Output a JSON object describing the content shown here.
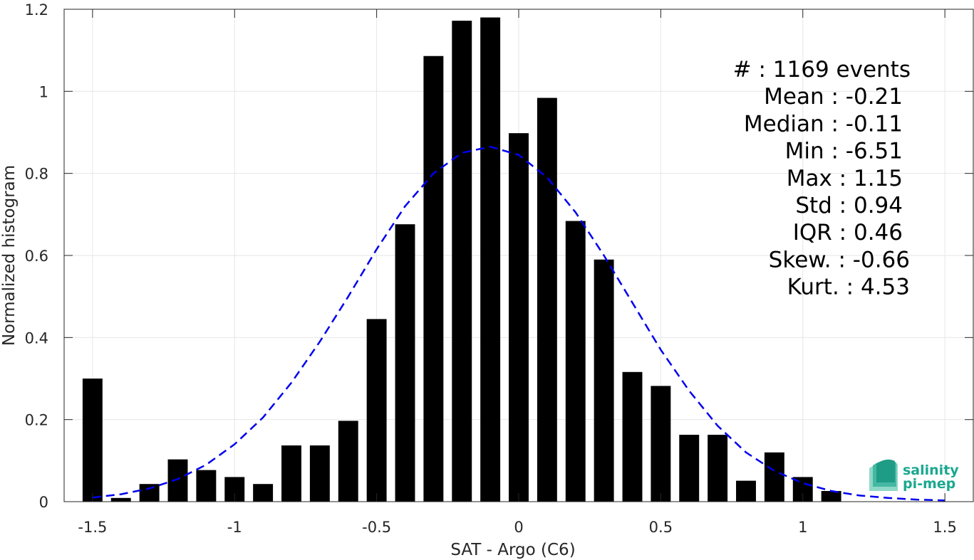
{
  "chart_data": {
    "type": "bar",
    "xlabel": "SAT - Argo (C6)",
    "ylabel": "Normalized histogram",
    "xlim": [
      -1.6,
      1.6
    ],
    "ylim": [
      0,
      1.2
    ],
    "grid": true,
    "x_ticks": [
      "-1.5",
      "-1",
      "-0.5",
      "0",
      "0.5",
      "1",
      "1.5"
    ],
    "y_ticks": [
      "0",
      "0.2",
      "0.4",
      "0.6",
      "0.8",
      "1",
      "1.2"
    ],
    "bin_centers": [
      -1.5,
      -1.4,
      -1.3,
      -1.2,
      -1.1,
      -1.0,
      -0.9,
      -0.8,
      -0.7,
      -0.6,
      -0.5,
      -0.4,
      -0.3,
      -0.2,
      -0.1,
      0.0,
      0.1,
      0.2,
      0.3,
      0.4,
      0.5,
      0.6,
      0.7,
      0.8,
      0.9,
      1.0,
      1.1
    ],
    "values": [
      0.3,
      0.009,
      0.043,
      0.103,
      0.077,
      0.06,
      0.043,
      0.137,
      0.137,
      0.197,
      0.445,
      0.676,
      1.086,
      1.172,
      1.18,
      0.898,
      0.984,
      0.684,
      0.59,
      0.316,
      0.282,
      0.163,
      0.163,
      0.051,
      0.12,
      0.06,
      0.026
    ],
    "bar_color": "#000000",
    "fit_curve": {
      "style": "dashed",
      "color": "#0000ee",
      "x": [
        -1.5,
        -1.4,
        -1.3,
        -1.2,
        -1.1,
        -1.0,
        -0.9,
        -0.8,
        -0.7,
        -0.6,
        -0.5,
        -0.4,
        -0.3,
        -0.2,
        -0.1,
        0.0,
        0.1,
        0.2,
        0.3,
        0.4,
        0.5,
        0.6,
        0.7,
        0.8,
        0.9,
        1.0,
        1.1,
        1.2,
        1.3,
        1.4,
        1.5
      ],
      "y": [
        0.01,
        0.018,
        0.032,
        0.055,
        0.09,
        0.14,
        0.205,
        0.29,
        0.39,
        0.5,
        0.615,
        0.72,
        0.8,
        0.85,
        0.865,
        0.845,
        0.79,
        0.705,
        0.6,
        0.485,
        0.37,
        0.27,
        0.185,
        0.12,
        0.075,
        0.045,
        0.026,
        0.015,
        0.009,
        0.005,
        0.003
      ]
    },
    "annotations": [
      "#  : 1169 events",
      "Mean : -0.21",
      "Median : -0.11",
      "Min : -6.51",
      "Max : 1.15",
      "Std : 0.94",
      "IQR : 0.46",
      "Skew. : -0.66",
      "Kurt. : 4.53"
    ]
  },
  "logo": {
    "line1": "salinity",
    "line2": "pi-mep",
    "color": "#1aa890"
  }
}
